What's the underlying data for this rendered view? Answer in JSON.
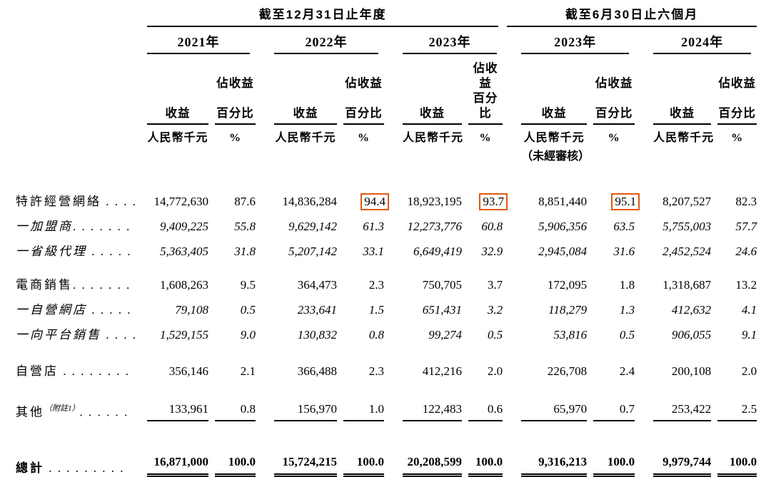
{
  "colors": {
    "highlight_box": "#e2580f",
    "rule": "#000000",
    "text": "#000000",
    "background": "#ffffff"
  },
  "header": {
    "group1": "截至12月31日止年度",
    "group2": "截至6月30日止六個月",
    "years": [
      "2021年",
      "2022年",
      "2023年",
      "2023年",
      "2024年"
    ],
    "pct_line1": "佔收益",
    "pct_line2": "百分比",
    "revenue": "收益",
    "unit": "人民幣千元",
    "pct_unit": "%",
    "unaudited": "（未經審核）"
  },
  "table": {
    "rows": [
      {
        "label": "特許經營網絡",
        "sup": "",
        "dots": " . . . .",
        "italic": false,
        "bold": false,
        "gap": "first",
        "rule": "none",
        "boxed": [
          3,
          5,
          7
        ],
        "values": [
          "14,772,630",
          "87.6",
          "14,836,284",
          "94.4",
          "18,923,195",
          "93.7",
          "8,851,440",
          "95.1",
          "8,207,527",
          "82.3"
        ]
      },
      {
        "label": "一加盟商",
        "sup": "",
        "dots": ". . . . . . .",
        "italic": true,
        "bold": false,
        "gap": "",
        "rule": "none",
        "boxed": [],
        "values": [
          "9,409,225",
          "55.8",
          "9,629,142",
          "61.3",
          "12,273,776",
          "60.8",
          "5,906,356",
          "63.5",
          "5,755,003",
          "57.7"
        ]
      },
      {
        "label": "一省級代理",
        "sup": "",
        "dots": " . . . . .",
        "italic": true,
        "bold": false,
        "gap": "",
        "rule": "none",
        "boxed": [],
        "values": [
          "5,363,405",
          "31.8",
          "5,207,142",
          "33.1",
          "6,649,419",
          "32.9",
          "2,945,084",
          "31.6",
          "2,452,524",
          "24.6"
        ]
      },
      {
        "label": "電商銷售",
        "sup": "",
        "dots": ". . . . . . .",
        "italic": false,
        "bold": false,
        "gap": "sm",
        "rule": "none",
        "boxed": [],
        "values": [
          "1,608,263",
          "9.5",
          "364,473",
          "2.3",
          "750,705",
          "3.7",
          "172,095",
          "1.8",
          "1,318,687",
          "13.2"
        ]
      },
      {
        "label": "一自營網店",
        "sup": "",
        "dots": " . . . . .",
        "italic": true,
        "bold": false,
        "gap": "",
        "rule": "none",
        "boxed": [],
        "values": [
          "79,108",
          "0.5",
          "233,641",
          "1.5",
          "651,431",
          "3.2",
          "118,279",
          "1.3",
          "412,632",
          "4.1"
        ]
      },
      {
        "label": "一向平台銷售",
        "sup": "",
        "dots": " . . . .",
        "italic": true,
        "bold": false,
        "gap": "",
        "rule": "none",
        "boxed": [],
        "values": [
          "1,529,155",
          "9.0",
          "130,832",
          "0.8",
          "99,274",
          "0.5",
          "53,816",
          "0.5",
          "906,055",
          "9.1"
        ]
      },
      {
        "label": "自營店",
        "sup": "",
        "dots": " . . . . . . . .",
        "italic": false,
        "bold": false,
        "gap": "md",
        "rule": "none",
        "boxed": [],
        "values": [
          "356,146",
          "2.1",
          "366,488",
          "2.3",
          "412,216",
          "2.0",
          "226,708",
          "2.4",
          "200,108",
          "2.0"
        ]
      },
      {
        "label": "其他",
        "sup": "（附註1）",
        "dots": ". . . . . .",
        "italic": false,
        "bold": false,
        "gap": "lg",
        "rule": "single",
        "boxed": [],
        "values": [
          "133,961",
          "0.8",
          "156,970",
          "1.0",
          "122,483",
          "0.6",
          "65,970",
          "0.7",
          "253,422",
          "2.5"
        ]
      },
      {
        "label": "總計",
        "sup": "",
        "dots": " . . . . . . . . .",
        "italic": false,
        "bold": true,
        "gap": "xl",
        "rule": "double",
        "boxed": [],
        "values": [
          "16,871,000",
          "100.0",
          "15,724,215",
          "100.0",
          "20,208,599",
          "100.0",
          "9,316,213",
          "100.0",
          "9,979,744",
          "100.0"
        ]
      }
    ]
  }
}
